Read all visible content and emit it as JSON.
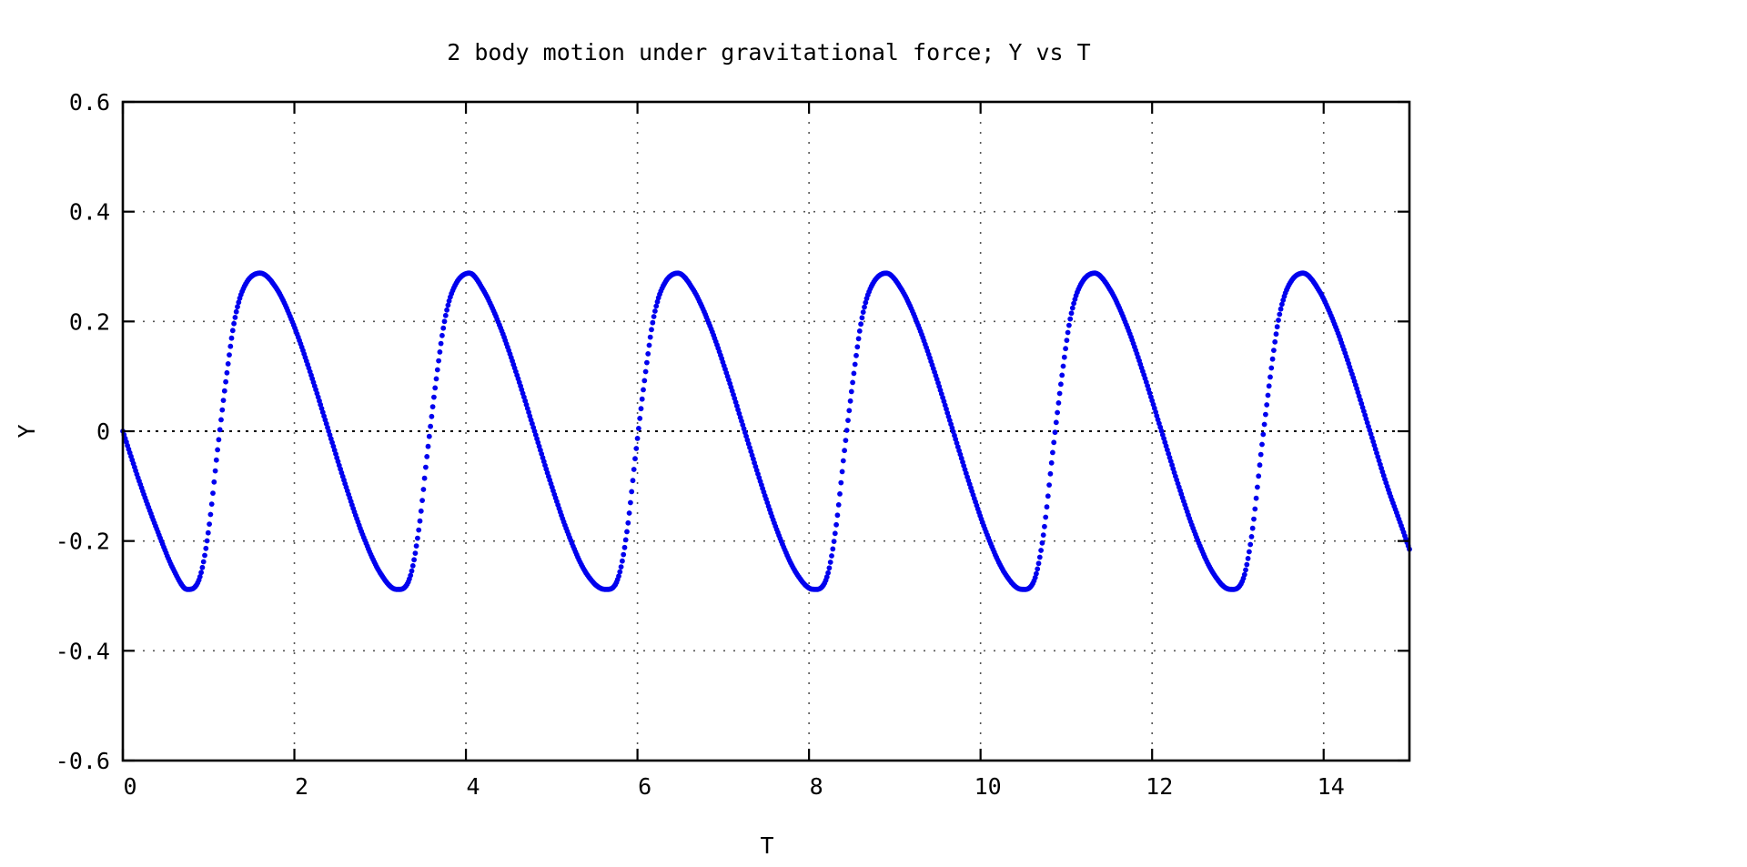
{
  "chart_data": {
    "type": "scatter",
    "title": "2 body motion under gravitational force; Y vs T",
    "xlabel": "T",
    "ylabel": "Y",
    "xlim": [
      0,
      15
    ],
    "ylim": [
      -0.6,
      0.6
    ],
    "xticks": [
      0,
      2,
      4,
      6,
      8,
      10,
      12,
      14
    ],
    "xtick_labels": [
      "0",
      "2",
      "4",
      "6",
      "8",
      "10",
      "12",
      "14"
    ],
    "yticks": [
      -0.6,
      -0.4,
      -0.2,
      0,
      0.2,
      0.4,
      0.6
    ],
    "ytick_labels": [
      "-0.6",
      "-0.4",
      "-0.2",
      "0",
      "0.2",
      "0.4",
      "0.6"
    ],
    "grid": true,
    "legend": false,
    "series": [
      {
        "color": "#0000ee",
        "x": [
          0,
          0.2,
          0.4,
          0.6,
          0.75,
          0.9,
          1.0,
          1.1,
          1.2,
          1.3,
          1.4,
          1.6,
          1.8,
          2.0,
          2.2,
          2.4,
          2.6,
          2.8,
          3.0,
          3.19,
          3.35,
          3.45,
          3.55,
          3.65,
          3.75,
          3.85,
          4.04,
          4.2,
          4.4,
          4.6,
          4.8,
          5.0,
          5.2,
          5.4,
          5.62,
          5.78,
          5.88,
          5.98,
          6.08,
          6.18,
          6.28,
          6.47,
          6.65,
          6.85,
          7.05,
          7.25,
          7.45,
          7.65,
          7.85,
          8.05,
          8.21,
          8.31,
          8.41,
          8.51,
          8.61,
          8.71,
          8.9,
          9.08,
          9.28,
          9.48,
          9.68,
          9.88,
          10.08,
          10.28,
          10.48,
          10.64,
          10.74,
          10.84,
          10.94,
          11.04,
          11.14,
          11.33,
          11.51,
          11.71,
          11.91,
          12.11,
          12.31,
          12.51,
          12.71,
          12.91,
          13.07,
          13.17,
          13.27,
          13.37,
          13.47,
          13.57,
          13.76,
          13.94,
          14.14,
          14.34,
          14.54,
          14.74,
          14.9,
          15.0
        ],
        "y": [
          0,
          -0.095,
          -0.18,
          -0.255,
          -0.288,
          -0.265,
          -0.18,
          -0.04,
          0.09,
          0.2,
          0.258,
          0.288,
          0.258,
          0.19,
          0.1,
          0.0,
          -0.1,
          -0.19,
          -0.258,
          -0.288,
          -0.265,
          -0.18,
          -0.04,
          0.09,
          0.2,
          0.258,
          0.288,
          0.258,
          0.19,
          0.1,
          0.0,
          -0.1,
          -0.19,
          -0.258,
          -0.288,
          -0.265,
          -0.18,
          -0.04,
          0.09,
          0.2,
          0.258,
          0.288,
          0.258,
          0.19,
          0.1,
          0.0,
          -0.1,
          -0.19,
          -0.258,
          -0.288,
          -0.265,
          -0.18,
          -0.04,
          0.09,
          0.2,
          0.258,
          0.288,
          0.258,
          0.19,
          0.1,
          0.0,
          -0.1,
          -0.19,
          -0.258,
          -0.288,
          -0.265,
          -0.18,
          -0.04,
          0.09,
          0.2,
          0.258,
          0.288,
          0.258,
          0.19,
          0.1,
          0.0,
          -0.1,
          -0.19,
          -0.258,
          -0.288,
          -0.265,
          -0.18,
          -0.04,
          0.09,
          0.2,
          0.258,
          0.288,
          0.258,
          0.19,
          0.1,
          0.0,
          -0.1,
          -0.17,
          -0.215
        ]
      }
    ]
  }
}
